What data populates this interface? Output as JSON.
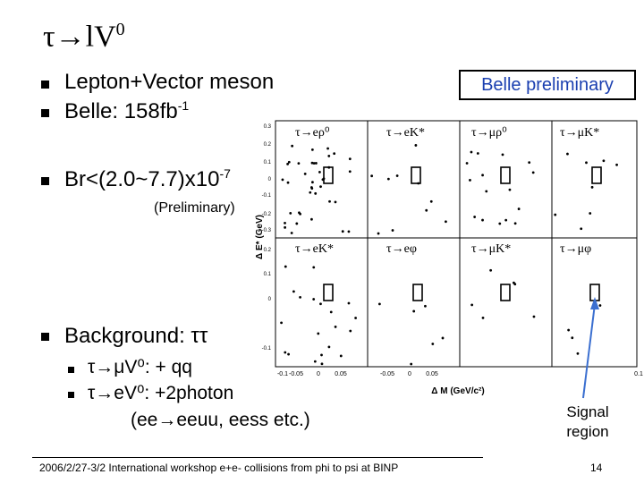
{
  "slide": {
    "title_main": "τ→lV",
    "title_sup": "0",
    "bullets": {
      "b1": "Lepton+Vector meson",
      "b2_main": "Belle: 158fb",
      "b2_sup": "-1",
      "b3_main": "Br<(2.0~7.7)x10",
      "b3_sup": "-7",
      "b3_note": "(Preliminary)",
      "b4": "Background: ττ",
      "sub1": "τ→μV⁰: + qq",
      "sub2": "τ→eV⁰: +2photon",
      "sub3": "(ee→eeuu, eess etc.)"
    },
    "belle_label": "Belle preliminary",
    "signal_label_1": "Signal",
    "signal_label_2": "region",
    "footer": "2006/2/27-3/2 International workshop e+e- collisions from phi to psi at BINP",
    "page_number": "14"
  },
  "colors": {
    "accent_blue": "#1a3fb0",
    "arrow_blue": "#3b6fd0"
  },
  "chart_data": {
    "type": "scatter",
    "ylabel": "Δ E* (GeV)",
    "xlabel": "Δ M (GeV/c²)",
    "xticks": [
      "-0.05",
      "0",
      "0.05"
    ],
    "yticks": [
      "0.3",
      "0.2",
      "0.1",
      "0",
      "-0.1",
      "-0.2",
      "-0.3"
    ],
    "yticks_lower": [
      "0.2",
      "0.1",
      "0",
      "-0.1"
    ],
    "panels": [
      {
        "label": "τ→eρ⁰"
      },
      {
        "label": "τ→eK*"
      },
      {
        "label": "τ→μρ⁰"
      },
      {
        "label": "τ→μK*"
      },
      {
        "label": "τ→eK*"
      },
      {
        "label": "τ→eφ"
      },
      {
        "label": "τ→μK*"
      },
      {
        "label": "τ→μφ"
      }
    ]
  }
}
